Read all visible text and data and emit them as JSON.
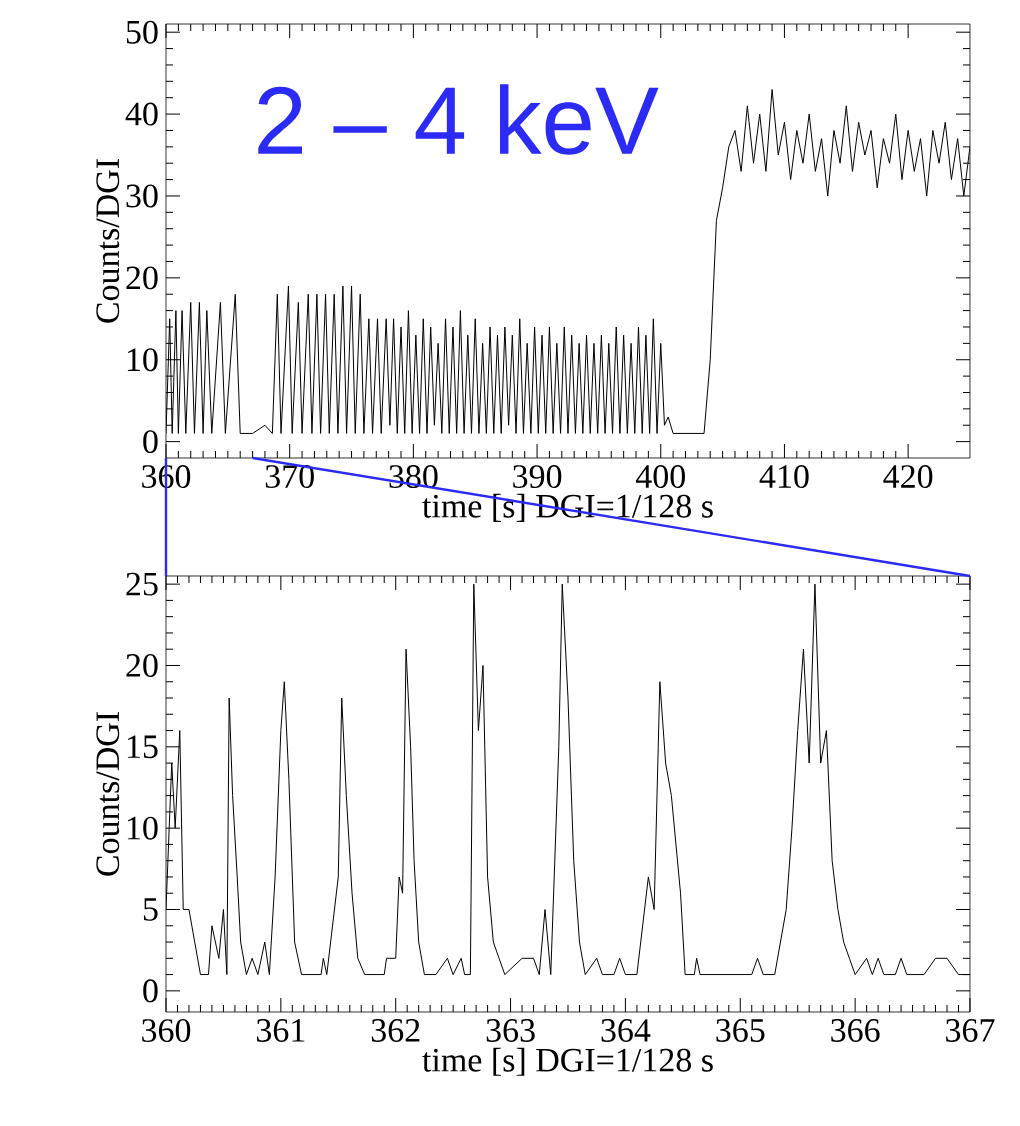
{
  "chart_data": [
    {
      "type": "line",
      "xlabel": "time [s]   DGI=1/128 s",
      "ylabel": "Counts/DGI",
      "annotations": [
        "2 – 4 keV"
      ],
      "xlim": [
        360,
        425
      ],
      "ylim": [
        -2,
        51
      ],
      "xticks": [
        360,
        370,
        380,
        390,
        400,
        410,
        420
      ],
      "yticks": [
        0,
        10,
        20,
        30,
        40,
        50
      ],
      "series": [
        {
          "color": "#000000",
          "x": [
            360,
            360.3,
            360.5,
            360.8,
            361,
            361.3,
            361.6,
            362,
            362.3,
            362.7,
            363,
            363.3,
            363.7,
            364.4,
            364.8,
            365.6,
            366,
            367,
            368,
            368.6,
            369,
            369.3,
            369.9,
            370.2,
            370.7,
            371,
            371.5,
            371.8,
            372.2,
            372.5,
            372.9,
            373.2,
            373.6,
            373.9,
            374.3,
            374.6,
            375,
            375.3,
            375.7,
            376,
            376.4,
            376.7,
            377.1,
            377.4,
            377.8,
            378.1,
            378.4,
            378.7,
            379.0,
            379.3,
            379.6,
            379.9,
            380.2,
            380.5,
            380.8,
            381.1,
            381.4,
            381.7,
            382.0,
            382.3,
            382.6,
            382.9,
            383.2,
            383.5,
            383.8,
            384.1,
            384.4,
            384.7,
            385.0,
            385.3,
            385.6,
            385.9,
            386.2,
            386.5,
            386.8,
            387.1,
            387.4,
            387.7,
            388.0,
            388.3,
            388.6,
            388.9,
            389.2,
            389.5,
            389.8,
            390.1,
            390.4,
            390.7,
            391.0,
            391.3,
            391.6,
            391.9,
            392.2,
            392.5,
            392.8,
            393.1,
            393.4,
            393.7,
            394.0,
            394.3,
            394.6,
            394.9,
            395.2,
            395.5,
            395.8,
            396.1,
            396.4,
            396.7,
            397.0,
            397.3,
            397.6,
            397.9,
            398.2,
            398.5,
            398.8,
            399.1,
            399.4,
            399.7,
            400.0,
            400.3,
            400.6,
            401,
            403.5,
            404,
            404.5,
            405,
            405.5,
            406,
            406.5,
            407,
            407.5,
            408,
            408.5,
            409,
            409.5,
            410,
            410.5,
            411,
            411.5,
            412,
            412.5,
            413,
            413.5,
            414,
            414.5,
            415,
            415.5,
            416,
            416.5,
            417,
            417.5,
            418,
            418.5,
            419,
            419.5,
            420,
            420.5,
            421,
            421.5,
            422,
            422.5,
            423,
            423.5,
            424,
            424.5,
            425
          ],
          "values": [
            1,
            15,
            1,
            16,
            1,
            16,
            1,
            17,
            1,
            17,
            1,
            16,
            1,
            17,
            1,
            18,
            1,
            1,
            2,
            1,
            18,
            1,
            19,
            1,
            17,
            1,
            18,
            1,
            18,
            1,
            18,
            1,
            18,
            1,
            19,
            1,
            19,
            1,
            18,
            1,
            15,
            1,
            15,
            1,
            15,
            2,
            15,
            1,
            14,
            1,
            16,
            1,
            13,
            1,
            15,
            1,
            14,
            2,
            12,
            1,
            15,
            1,
            14,
            1,
            16,
            1,
            13,
            1,
            15,
            1,
            12,
            1,
            14,
            1,
            13,
            1,
            14,
            2,
            13,
            1,
            15,
            1,
            12,
            1,
            14,
            1,
            13,
            1,
            14,
            1,
            12,
            1,
            14,
            1,
            13,
            1,
            12,
            1,
            13,
            1,
            12,
            1,
            13,
            1,
            12,
            1,
            14,
            1,
            13,
            1,
            12,
            1,
            14,
            1,
            13,
            1,
            15,
            1,
            12,
            2,
            3,
            1,
            1,
            10,
            27,
            31,
            36,
            38,
            33,
            41,
            34,
            40,
            33,
            43,
            35,
            39,
            32,
            38,
            34,
            40,
            33,
            37,
            30,
            38,
            34,
            41,
            33,
            39,
            35,
            38,
            31,
            37,
            34,
            40,
            32,
            38,
            33,
            37,
            30,
            38,
            34,
            39,
            32,
            37,
            30,
            36
          ]
        }
      ]
    },
    {
      "type": "line",
      "xlabel": "time [s]   DGI=1/128 s",
      "ylabel": "Counts/DGI",
      "xlim": [
        360,
        367
      ],
      "ylim": [
        -1.3,
        25.5
      ],
      "xticks": [
        360,
        361,
        362,
        363,
        364,
        365,
        366,
        367
      ],
      "yticks": [
        0,
        5,
        10,
        15,
        20,
        25
      ],
      "series": [
        {
          "color": "#000000",
          "x": [
            360,
            360.05,
            360.08,
            360.12,
            360.15,
            360.2,
            360.25,
            360.3,
            360.37,
            360.4,
            360.43,
            360.46,
            360.5,
            360.53,
            360.55,
            360.58,
            360.62,
            360.65,
            360.7,
            360.75,
            360.8,
            360.86,
            360.9,
            360.95,
            361,
            361.03,
            361.07,
            361.12,
            361.18,
            361.35,
            361.37,
            361.4,
            361.5,
            361.53,
            361.57,
            361.62,
            361.67,
            361.73,
            361.9,
            361.92,
            362,
            362.03,
            362.06,
            362.09,
            362.13,
            362.16,
            362.2,
            362.25,
            362.35,
            362.45,
            362.5,
            362.57,
            362.6,
            362.65,
            362.68,
            362.72,
            362.76,
            362.8,
            362.85,
            362.9,
            362.95,
            363.1,
            363.2,
            363.25,
            363.3,
            363.35,
            363.42,
            363.45,
            363.5,
            363.55,
            363.6,
            363.65,
            363.75,
            363.8,
            363.9,
            363.95,
            364,
            364.1,
            364.15,
            364.2,
            364.25,
            364.3,
            364.35,
            364.4,
            364.48,
            364.52,
            364.6,
            364.62,
            364.65,
            365.1,
            365.15,
            365.2,
            365.3,
            365.35,
            365.4,
            365.45,
            365.5,
            365.55,
            365.6,
            365.65,
            365.7,
            365.75,
            365.8,
            365.85,
            365.9,
            365.95,
            366,
            366.1,
            366.15,
            366.2,
            366.25,
            366.35,
            366.4,
            366.45,
            366.6,
            366.7,
            366.8,
            366.9,
            367
          ],
          "values": [
            5,
            14,
            10,
            16,
            5,
            5,
            3,
            1,
            1,
            4,
            3,
            2,
            5,
            1,
            18,
            12,
            7,
            3,
            1,
            2,
            1,
            3,
            1,
            7,
            16,
            19,
            13,
            3,
            1,
            1,
            2,
            1,
            7,
            18,
            12,
            6,
            2,
            1,
            1,
            2,
            2,
            7,
            6,
            21,
            15,
            8,
            3,
            1,
            1,
            2,
            1,
            2,
            1,
            1,
            25,
            16,
            20,
            7,
            3,
            2,
            1,
            2,
            2,
            1,
            5,
            1,
            15,
            25,
            18,
            8,
            3,
            1,
            2,
            1,
            1,
            2,
            1,
            1,
            4,
            7,
            5,
            19,
            14,
            12,
            6,
            1,
            1,
            2,
            1,
            1,
            2,
            1,
            1,
            3,
            5,
            10,
            16,
            21,
            14,
            25,
            14,
            16,
            8,
            5,
            3,
            2,
            1,
            2,
            1,
            2,
            1,
            1,
            2,
            1,
            1,
            2,
            2,
            1,
            1
          ]
        }
      ]
    }
  ]
}
